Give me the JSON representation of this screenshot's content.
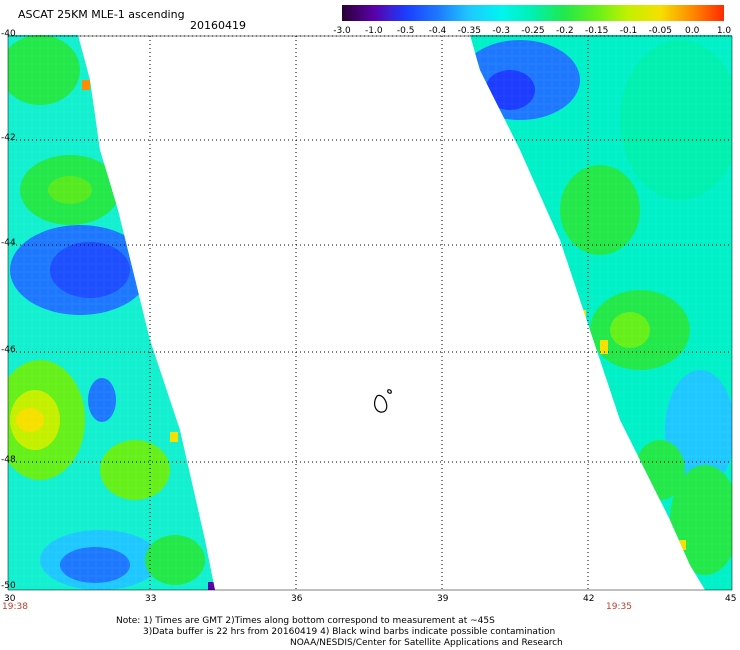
{
  "header": {
    "title": "ASCAT 25KM MLE-1 ascending",
    "date": "20160419"
  },
  "colorbar": {
    "labels": [
      "-3.0",
      "-1.0",
      "-0.5",
      "-0.4",
      "-0.35",
      "-0.3",
      "-0.25",
      "-0.2",
      "-0.15",
      "-0.1",
      "-0.05",
      "0.0",
      "1.0"
    ],
    "colors": [
      "#2a0033",
      "#5a00a8",
      "#1c3cff",
      "#1e78ff",
      "#1ec8ff",
      "#00f5f0",
      "#00f0b0",
      "#22e84a",
      "#66f01a",
      "#c4f000",
      "#f5e000",
      "#ff8a00",
      "#ff2a00"
    ]
  },
  "axes": {
    "x_ticks": [
      "30",
      "33",
      "36",
      "39",
      "42",
      "45"
    ],
    "y_ticks": [
      "-40",
      "-42",
      "-44",
      "-46",
      "-48",
      "-50"
    ],
    "time_left": "19:38",
    "time_right": "19:35"
  },
  "notes": {
    "line1": "Note: 1) Times are GMT 2)Times along bottom correspond to measurement at ~45S",
    "line2": "3)Data buffer is 22 hrs from 20160419 4) Black wind barbs indicate possible contamination",
    "line3": "NOAA/NESDIS/Center for Satellite Applications and Research"
  }
}
